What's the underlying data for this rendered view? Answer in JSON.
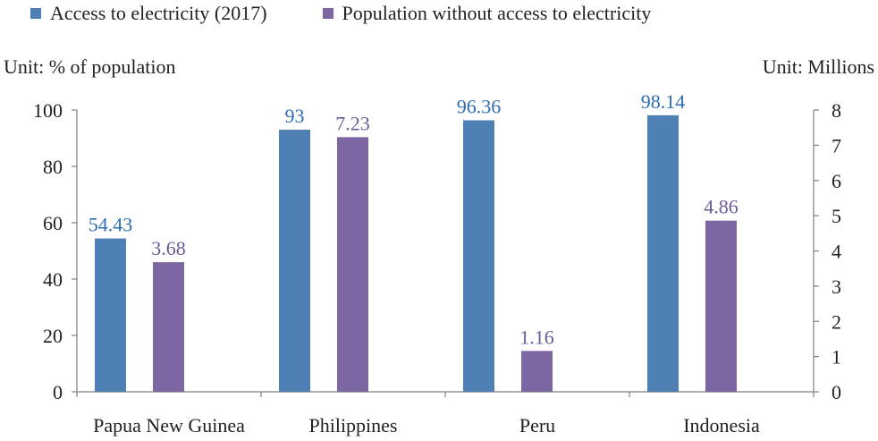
{
  "chart_data": {
    "type": "bar",
    "categories": [
      "Papua New Guinea",
      "Philippines",
      "Peru",
      "Indonesia"
    ],
    "series": [
      {
        "name": "Access to electricity (2017)",
        "axis": "left",
        "color": "#4e7fb5",
        "label_color": "#2e6db4",
        "values": [
          54.43,
          93,
          96.36,
          98.14
        ],
        "labels": [
          "54.43",
          "93",
          "96.36",
          "98.14"
        ]
      },
      {
        "name": "Population without access to electricity",
        "axis": "right",
        "color": "#7c67a3",
        "label_color": "#6d5a99",
        "values": [
          3.68,
          7.23,
          1.16,
          4.86
        ],
        "labels": [
          "3.68",
          "7.23",
          "1.16",
          "4.86"
        ]
      }
    ],
    "y_left": {
      "label": "Unit: % of population",
      "lim": [
        0,
        100
      ],
      "ticks": [
        0,
        20,
        40,
        60,
        80,
        100
      ]
    },
    "y_right": {
      "label": "Unit: Millions",
      "lim": [
        0,
        8
      ],
      "ticks": [
        0,
        1,
        2,
        3,
        4,
        5,
        6,
        7,
        8
      ]
    },
    "grid": false,
    "legend_position": "top-left"
  }
}
